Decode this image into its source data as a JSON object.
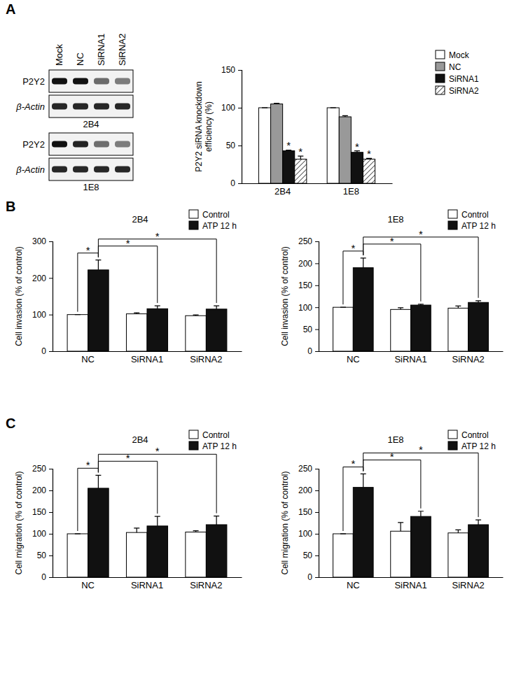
{
  "panels": [
    "A",
    "B",
    "C"
  ],
  "blots": {
    "lanes": [
      "Mock",
      "NC",
      "SiRNA1",
      "SiRNA2"
    ],
    "rows": [
      "P2Y2",
      "β-Actin"
    ],
    "cell_lines": [
      "2B4",
      "1E8"
    ]
  },
  "chart_data": [
    {
      "type": "bar",
      "ylabel": "P2Y2 siRNA knockdown efficiency (%)",
      "categories": [
        "2B4",
        "1E8"
      ],
      "ylim": [
        0,
        150
      ],
      "yticks": [
        0,
        50,
        100,
        150
      ],
      "legend": "upper right",
      "series": [
        {
          "name": "Mock",
          "color": "#ffffff",
          "values": [
            100,
            100
          ],
          "errors": [
            0,
            0
          ]
        },
        {
          "name": "NC",
          "color": "#999999",
          "values": [
            105,
            88
          ],
          "errors": [
            1,
            1.5
          ]
        },
        {
          "name": "SiRNA1",
          "color": "#111111",
          "values": [
            43,
            41
          ],
          "errors": [
            1,
            2
          ]
        },
        {
          "name": "SiRNA2",
          "color": "#ffffff",
          "marker": "hatch",
          "values": [
            32,
            32
          ],
          "errors": [
            4,
            1
          ]
        }
      ],
      "annotations": [
        {
          "text": "*",
          "category": 0,
          "series": 2
        },
        {
          "text": "*",
          "category": 0,
          "series": 3
        },
        {
          "text": "*",
          "category": 1,
          "series": 2
        },
        {
          "text": "*",
          "category": 1,
          "series": 3
        }
      ]
    },
    {
      "type": "bar",
      "title": "2B4",
      "ylabel": "Cell invasion (% of control)",
      "categories": [
        "NC",
        "SiRNA1",
        "SiRNA2"
      ],
      "ylim": [
        0,
        300
      ],
      "yticks": [
        0,
        100,
        200,
        300
      ],
      "legend": "upper right",
      "series": [
        {
          "name": "Control",
          "color": "#ffffff",
          "values": [
            100,
            102,
            97
          ],
          "errors": [
            0,
            3,
            2
          ]
        },
        {
          "name": "ATP 12 h",
          "color": "#111111",
          "values": [
            222,
            116,
            115
          ],
          "errors": [
            27,
            8,
            9
          ]
        }
      ],
      "annotations": [
        {
          "text": "*",
          "from": [
            0,
            0
          ],
          "to": [
            0,
            1
          ]
        },
        {
          "text": "*",
          "from": [
            0,
            1
          ],
          "to": [
            1,
            1
          ]
        },
        {
          "text": "*",
          "from": [
            0,
            1
          ],
          "to": [
            2,
            1
          ]
        }
      ]
    },
    {
      "type": "bar",
      "title": "1E8",
      "ylabel": "Cell invasion (% of control)",
      "categories": [
        "NC",
        "SiRNA1",
        "SiRNA2"
      ],
      "ylim": [
        0,
        250
      ],
      "yticks": [
        0,
        50,
        100,
        150,
        200,
        250
      ],
      "legend": "upper right",
      "series": [
        {
          "name": "Control",
          "color": "#ffffff",
          "values": [
            100,
            95,
            98
          ],
          "errors": [
            0,
            4,
            5
          ]
        },
        {
          "name": "ATP 12 h",
          "color": "#111111",
          "values": [
            190,
            105,
            111
          ],
          "errors": [
            22,
            2,
            4
          ]
        }
      ],
      "annotations": [
        {
          "text": "*",
          "from": [
            0,
            0
          ],
          "to": [
            0,
            1
          ]
        },
        {
          "text": "*",
          "from": [
            0,
            1
          ],
          "to": [
            1,
            1
          ]
        },
        {
          "text": "*",
          "from": [
            0,
            1
          ],
          "to": [
            2,
            1
          ]
        }
      ]
    },
    {
      "type": "bar",
      "title": "2B4",
      "ylabel": "Cell migration (% of control)",
      "categories": [
        "NC",
        "SiRNA1",
        "SiRNA2"
      ],
      "ylim": [
        0,
        250
      ],
      "yticks": [
        0,
        50,
        100,
        150,
        200,
        250
      ],
      "legend": "upper right",
      "series": [
        {
          "name": "Control",
          "color": "#ffffff",
          "values": [
            100,
            103,
            104
          ],
          "errors": [
            0,
            10,
            3
          ]
        },
        {
          "name": "ATP 12 h",
          "color": "#111111",
          "values": [
            205,
            118,
            121
          ],
          "errors": [
            30,
            22,
            20
          ]
        }
      ],
      "annotations": [
        {
          "text": "*",
          "from": [
            0,
            0
          ],
          "to": [
            0,
            1
          ]
        },
        {
          "text": "*",
          "from": [
            0,
            1
          ],
          "to": [
            1,
            1
          ]
        },
        {
          "text": "*",
          "from": [
            0,
            1
          ],
          "to": [
            2,
            1
          ]
        }
      ]
    },
    {
      "type": "bar",
      "title": "1E8",
      "ylabel": "Cell migration (% of control)",
      "categories": [
        "NC",
        "SiRNA1",
        "SiRNA2"
      ],
      "ylim": [
        0,
        250
      ],
      "yticks": [
        0,
        50,
        100,
        150,
        200,
        250
      ],
      "legend": "upper right",
      "series": [
        {
          "name": "Control",
          "color": "#ffffff",
          "values": [
            100,
            106,
            102
          ],
          "errors": [
            0,
            20,
            7
          ]
        },
        {
          "name": "ATP 12 h",
          "color": "#111111",
          "values": [
            207,
            140,
            121
          ],
          "errors": [
            31,
            12,
            11
          ]
        }
      ],
      "annotations": [
        {
          "text": "*",
          "from": [
            0,
            0
          ],
          "to": [
            0,
            1
          ]
        },
        {
          "text": "*",
          "from": [
            0,
            1
          ],
          "to": [
            1,
            1
          ]
        },
        {
          "text": "*",
          "from": [
            0,
            1
          ],
          "to": [
            2,
            1
          ]
        }
      ]
    }
  ]
}
